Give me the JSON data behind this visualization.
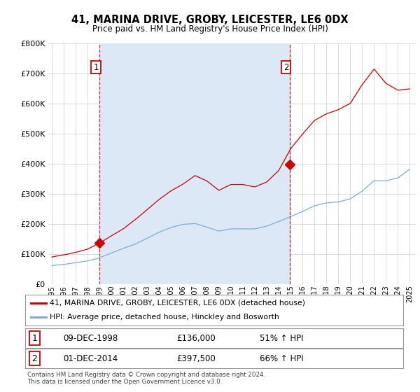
{
  "title": "41, MARINA DRIVE, GROBY, LEICESTER, LE6 0DX",
  "subtitle": "Price paid vs. HM Land Registry's House Price Index (HPI)",
  "legend_label_red": "41, MARINA DRIVE, GROBY, LEICESTER, LE6 0DX (detached house)",
  "legend_label_blue": "HPI: Average price, detached house, Hinckley and Bosworth",
  "footnote": "Contains HM Land Registry data © Crown copyright and database right 2024.\nThis data is licensed under the Open Government Licence v3.0.",
  "transaction1_date": "09-DEC-1998",
  "transaction1_price": "£136,000",
  "transaction1_hpi": "51% ↑ HPI",
  "transaction2_date": "01-DEC-2014",
  "transaction2_price": "£397,500",
  "transaction2_hpi": "66% ↑ HPI",
  "point1_x": 1999.0,
  "point1_y": 136000,
  "point2_x": 2014.92,
  "point2_y": 397500,
  "red_color": "#cc0000",
  "blue_color": "#7bafd4",
  "shade_color": "#dce8f5",
  "background_color": "#ffffff",
  "grid_color": "#cccccc",
  "ylim": [
    0,
    800000
  ],
  "yticks": [
    0,
    100000,
    200000,
    300000,
    400000,
    500000,
    600000,
    700000,
    800000
  ],
  "ytick_labels": [
    "£0",
    "£100K",
    "£200K",
    "£300K",
    "£400K",
    "£500K",
    "£600K",
    "£700K",
    "£800K"
  ],
  "xtick_years": [
    1995,
    1996,
    1997,
    1998,
    1999,
    2000,
    2001,
    2002,
    2003,
    2004,
    2005,
    2006,
    2007,
    2008,
    2009,
    2010,
    2011,
    2012,
    2013,
    2014,
    2015,
    2016,
    2017,
    2018,
    2019,
    2020,
    2021,
    2022,
    2023,
    2024,
    2025
  ]
}
